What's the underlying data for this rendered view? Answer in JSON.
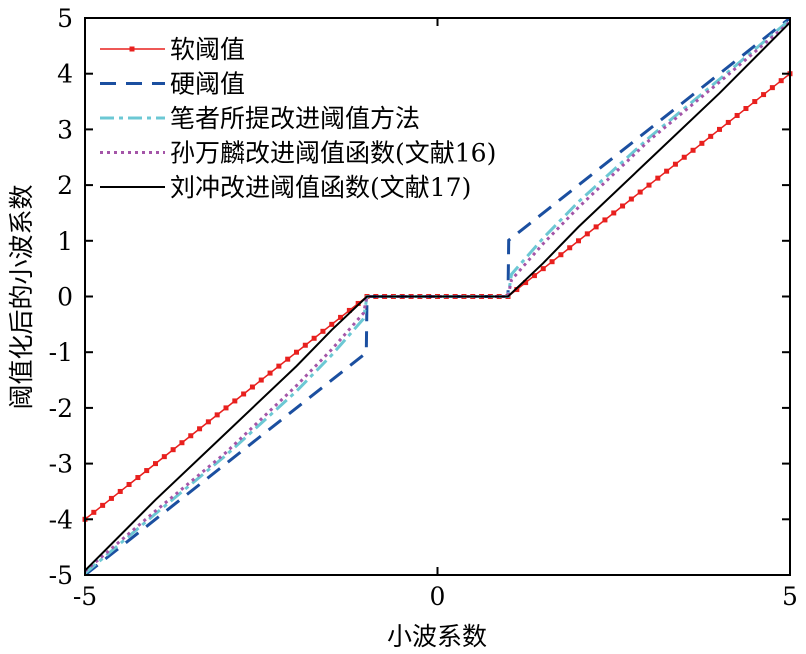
{
  "chart_data": {
    "type": "line",
    "xlabel": "小波系数",
    "ylabel": "阈值化后的小波系数",
    "xlim": [
      -5,
      5
    ],
    "ylim": [
      -5,
      5
    ],
    "xticks": [
      "-5",
      "0",
      "5"
    ],
    "xtick_values": [
      -5,
      0,
      5
    ],
    "yticks": [
      "-5",
      "-4",
      "-3",
      "-2",
      "-1",
      "0",
      "1",
      "2",
      "3",
      "4",
      "5"
    ],
    "ytick_values": [
      -5,
      -4,
      -3,
      -2,
      -1,
      0,
      1,
      2,
      3,
      4,
      5
    ],
    "legend_position": "top-left",
    "series": [
      {
        "name": "软阈值",
        "color": "#e8201e",
        "style": "solid-marker",
        "x": [
          -5,
          -1,
          1,
          5
        ],
        "y": [
          -4,
          0,
          0,
          4
        ]
      },
      {
        "name": "硬阈值",
        "color": "#1b4fa0",
        "style": "dashed",
        "x": [
          -5,
          -1.01,
          -1,
          1,
          1.01,
          5
        ],
        "y": [
          -5,
          -1.01,
          0,
          0,
          1.01,
          5
        ]
      },
      {
        "name": "笔者所提改进阈值方法",
        "color": "#6cc8d4",
        "style": "dashdot",
        "x": [
          -5,
          -4,
          -3,
          -2,
          -1.5,
          -1.05,
          -1,
          1,
          1.05,
          1.5,
          2,
          3,
          4,
          5
        ],
        "y": [
          -4.97,
          -3.9,
          -2.85,
          -1.7,
          -1.05,
          -0.4,
          0,
          0,
          0.4,
          1.05,
          1.7,
          2.85,
          3.9,
          4.97
        ]
      },
      {
        "name": "孙万麟改进阈值函数(文献16)",
        "color": "#a455a8",
        "style": "dotted",
        "x": [
          -5,
          -4,
          -3,
          -2,
          -1.5,
          -1.05,
          -1,
          1,
          1.05,
          1.5,
          2,
          3,
          4,
          5
        ],
        "y": [
          -4.93,
          -3.85,
          -2.8,
          -1.6,
          -0.95,
          -0.3,
          0,
          0,
          0.3,
          0.95,
          1.6,
          2.8,
          3.85,
          4.93
        ]
      },
      {
        "name": "刘冲改进阈值函数(文献17)",
        "color": "#000000",
        "style": "solid",
        "x": [
          -5,
          -4,
          -3,
          -2,
          -1.5,
          -1,
          1,
          1.5,
          2,
          3,
          4,
          5
        ],
        "y": [
          -4.92,
          -3.65,
          -2.45,
          -1.25,
          -0.6,
          0,
          0,
          0.6,
          1.25,
          2.45,
          3.65,
          4.92
        ]
      }
    ]
  }
}
